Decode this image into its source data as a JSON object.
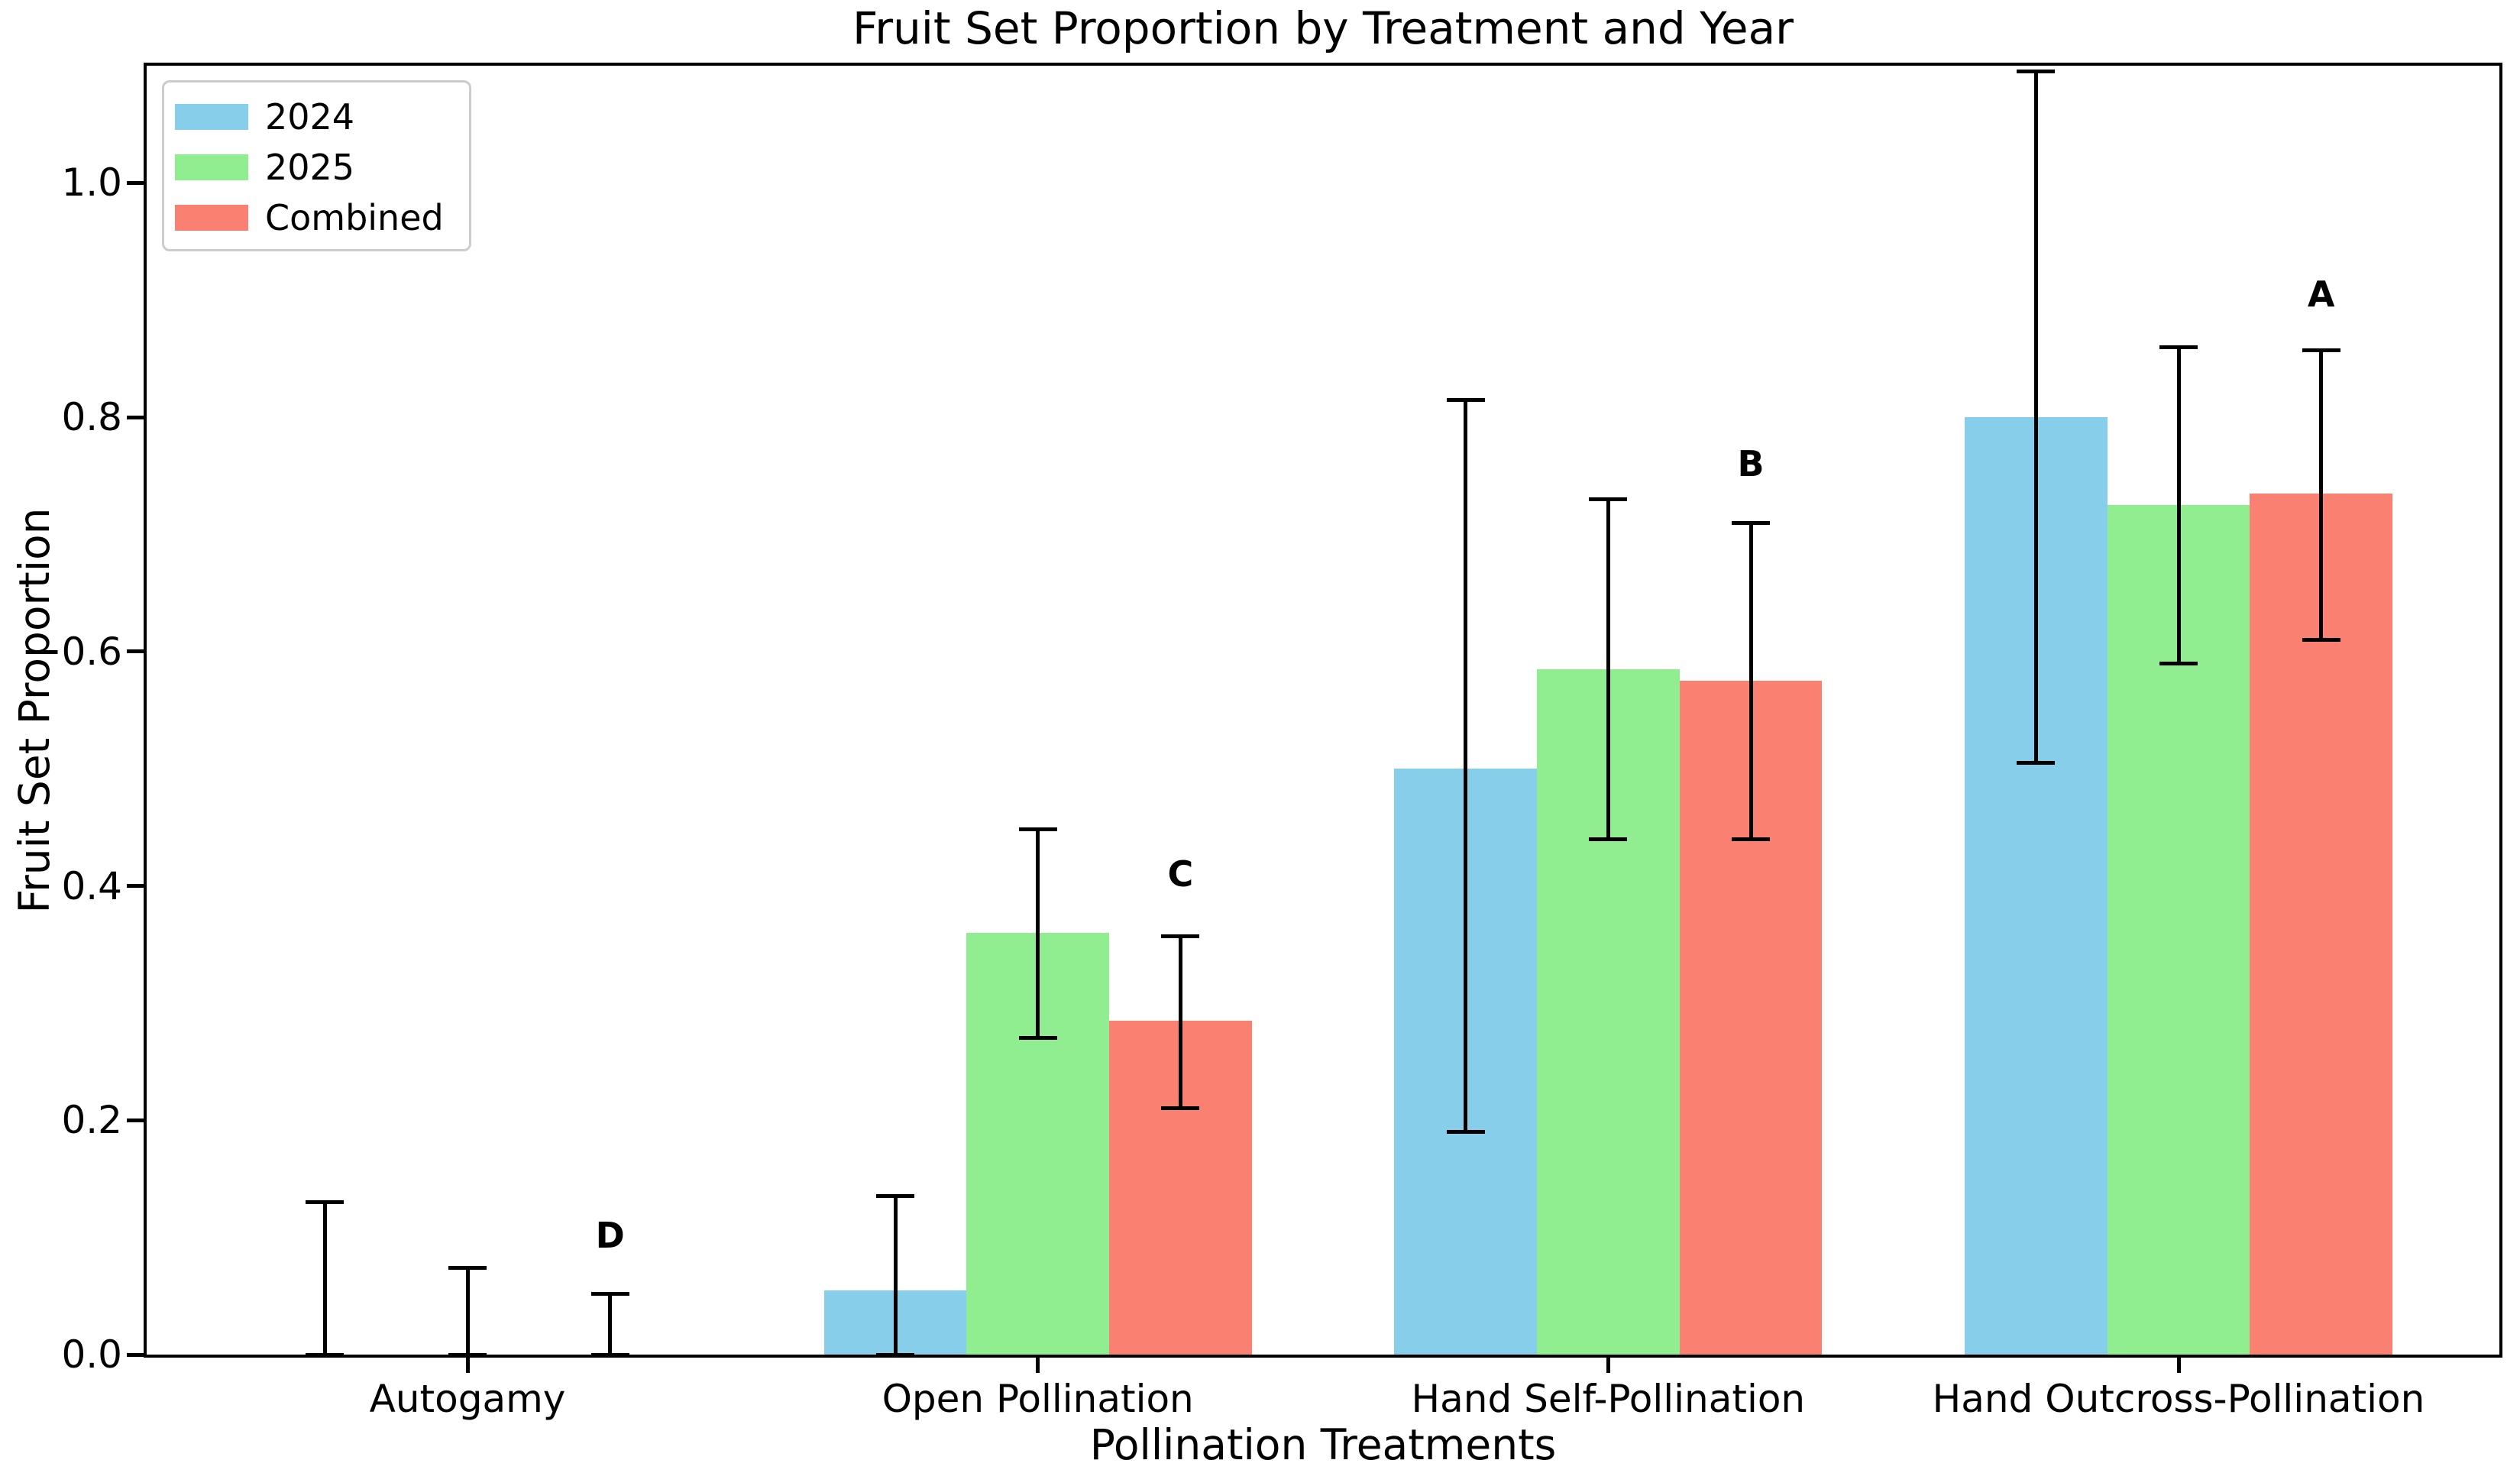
{
  "chart_data": {
    "type": "bar",
    "title": "Fruit Set Proportion by Treatment and Year",
    "xlabel": "Pollination Treatments",
    "ylabel": "Fruit Set Proportion",
    "categories": [
      "Autogamy",
      "Open Pollination",
      "Hand Self-Pollination",
      "Hand Outcross-Pollination"
    ],
    "series": [
      {
        "name": "2024",
        "color": "#87CEEB",
        "values": [
          0.0,
          0.055,
          0.5,
          0.8
        ],
        "error_low": [
          0.0,
          0.0,
          0.19,
          0.505
        ],
        "error_high": [
          0.13,
          0.135,
          0.815,
          1.095
        ]
      },
      {
        "name": "2025",
        "color": "#90EE90",
        "values": [
          0.0,
          0.36,
          0.585,
          0.725
        ],
        "error_low": [
          0.0,
          0.27,
          0.44,
          0.59
        ],
        "error_high": [
          0.074,
          0.448,
          0.73,
          0.86
        ]
      },
      {
        "name": "Combined",
        "color": "#FA8072",
        "values": [
          0.0,
          0.285,
          0.575,
          0.735
        ],
        "error_low": [
          0.0,
          0.21,
          0.44,
          0.61
        ],
        "error_high": [
          0.052,
          0.357,
          0.71,
          0.857
        ]
      }
    ],
    "sig_letters": [
      {
        "label": "D",
        "y": 0.102
      },
      {
        "label": "C",
        "y": 0.41
      },
      {
        "label": "B",
        "y": 0.76
      },
      {
        "label": "A",
        "y": 0.905
      }
    ],
    "yticks": [
      "0.0",
      "0.2",
      "0.4",
      "0.6",
      "0.8",
      "1.0"
    ],
    "ylim": [
      0,
      1.1
    ],
    "xlim": [
      -0.5625,
      3.5625
    ],
    "bar_width": 0.25,
    "error_color": "#000000",
    "legend_position": "upper left",
    "grid": false
  }
}
